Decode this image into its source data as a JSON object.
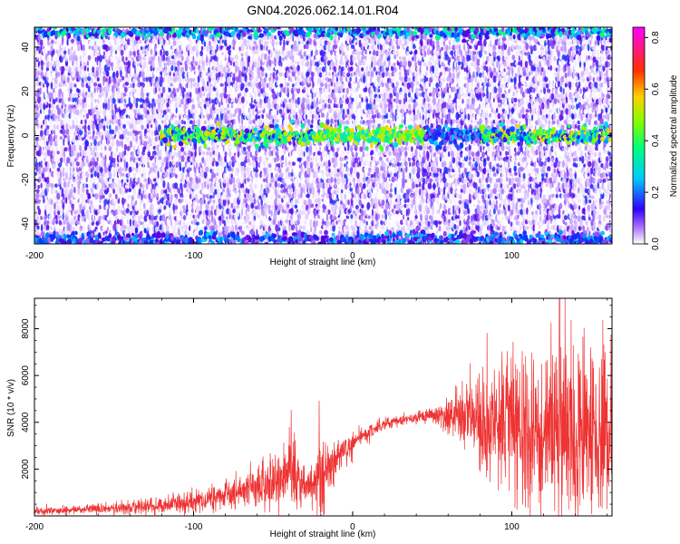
{
  "title": "GN04.2026.062.14.01.R04",
  "chart_data": [
    {
      "type": "heatmap",
      "xlabel": "Height of straight line (km)",
      "ylabel": "Frequency (Hz)",
      "xlim": [
        -200,
        163
      ],
      "ylim": [
        -49,
        49
      ],
      "xticks": [
        -200,
        -100,
        0,
        100
      ],
      "yticks": [
        -40,
        -20,
        0,
        20,
        40
      ],
      "colorbar": {
        "label": "Normalized spectral amplitude",
        "range": [
          0.0,
          0.84
        ],
        "ticks": [
          0.0,
          0.2,
          0.4,
          0.6,
          0.8
        ],
        "colormap": [
          "#ffffff",
          "#8a2be2",
          "#0000ff",
          "#00ffff",
          "#00ff00",
          "#ffff00",
          "#ff8000",
          "#ff0000",
          "#ff00ff"
        ]
      },
      "features": [
        {
          "name": "signal near 0 Hz",
          "x": [
            -120,
            163
          ],
          "freq": 0,
          "amplitude_range": [
            0.2,
            0.6
          ]
        },
        {
          "name": "band near 47 Hz",
          "x": [
            -200,
            163
          ],
          "freq": 47,
          "amplitude_range": [
            0.1,
            0.4
          ]
        },
        {
          "name": "band near -47 Hz",
          "x": [
            -200,
            163
          ],
          "freq": -47,
          "amplitude_range": [
            0.1,
            0.3
          ]
        }
      ],
      "background_amplitude": [
        0.0,
        0.15
      ]
    },
    {
      "type": "line",
      "xlabel": "Height of straight line (km)",
      "ylabel": "SNR (10 * v/v)",
      "xlim": [
        -200,
        163
      ],
      "ylim": [
        0,
        9300
      ],
      "xticks": [
        -200,
        -100,
        0,
        100
      ],
      "yticks": [
        2000,
        4000,
        6000,
        8000
      ],
      "color": "#ee3333",
      "series": [
        {
          "x": [
            -200,
            -180,
            -160,
            -140,
            -120,
            -100,
            -90,
            -80,
            -70,
            -60,
            -50,
            -45,
            -40,
            -35,
            -30,
            -25,
            -20,
            -18,
            -15,
            -12,
            -10,
            -5,
            0,
            10,
            20,
            30,
            40,
            50,
            55,
            60,
            70,
            80,
            90,
            100,
            110,
            120,
            130,
            140,
            150,
            163
          ],
          "mean": [
            200,
            250,
            300,
            350,
            450,
            600,
            700,
            900,
            1100,
            1300,
            1500,
            1600,
            1900,
            1700,
            1400,
            1200,
            1500,
            1700,
            1900,
            2200,
            2500,
            2900,
            3100,
            3600,
            3900,
            4100,
            4200,
            4300,
            4300,
            4300,
            4300,
            4200,
            4000,
            3900,
            3700,
            3600,
            3500,
            3500,
            3500,
            3600
          ],
          "spread": [
            150,
            150,
            200,
            250,
            300,
            400,
            450,
            550,
            700,
            900,
            1100,
            1400,
            1700,
            1400,
            900,
            600,
            2200,
            1500,
            1200,
            900,
            700,
            600,
            400,
            300,
            250,
            200,
            200,
            300,
            500,
            700,
            1100,
            1700,
            2300,
            2800,
            3100,
            3300,
            3400,
            3300,
            3300,
            3200
          ],
          "peak": {
            "x": 130,
            "y": 9300
          }
        }
      ]
    }
  ]
}
